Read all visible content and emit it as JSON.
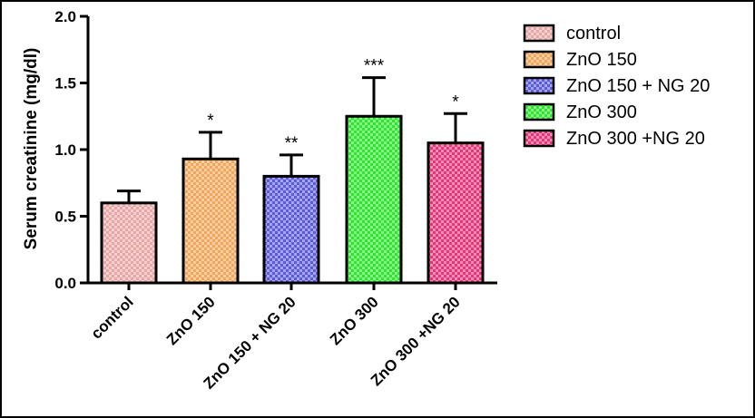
{
  "chart_data": {
    "type": "bar",
    "ylabel": "Serum creatinine (mg/dl)",
    "ylim": [
      0,
      2.0
    ],
    "y_ticks": [
      "0.0",
      "0.5",
      "1.0",
      "1.5",
      "2.0"
    ],
    "categories": [
      "control",
      "ZnO 150",
      "ZnO 150 + NG 20",
      "ZnO 300",
      "ZnO 300 +NG 20"
    ],
    "values": [
      0.6,
      0.93,
      0.8,
      1.25,
      1.05
    ],
    "errors": [
      0.09,
      0.2,
      0.16,
      0.29,
      0.22
    ],
    "significance": [
      "",
      "*",
      "**",
      "***",
      "*"
    ],
    "colors": [
      "#e8a7a7",
      "#f2a65a",
      "#5b5bdc",
      "#2ee62e",
      "#e8347a"
    ],
    "legend": {
      "position": "top-right",
      "entries": [
        "control",
        "ZnO 150",
        "ZnO 150 + NG 20",
        "ZnO 300",
        "ZnO 300 +NG 20"
      ]
    },
    "grid": false
  }
}
